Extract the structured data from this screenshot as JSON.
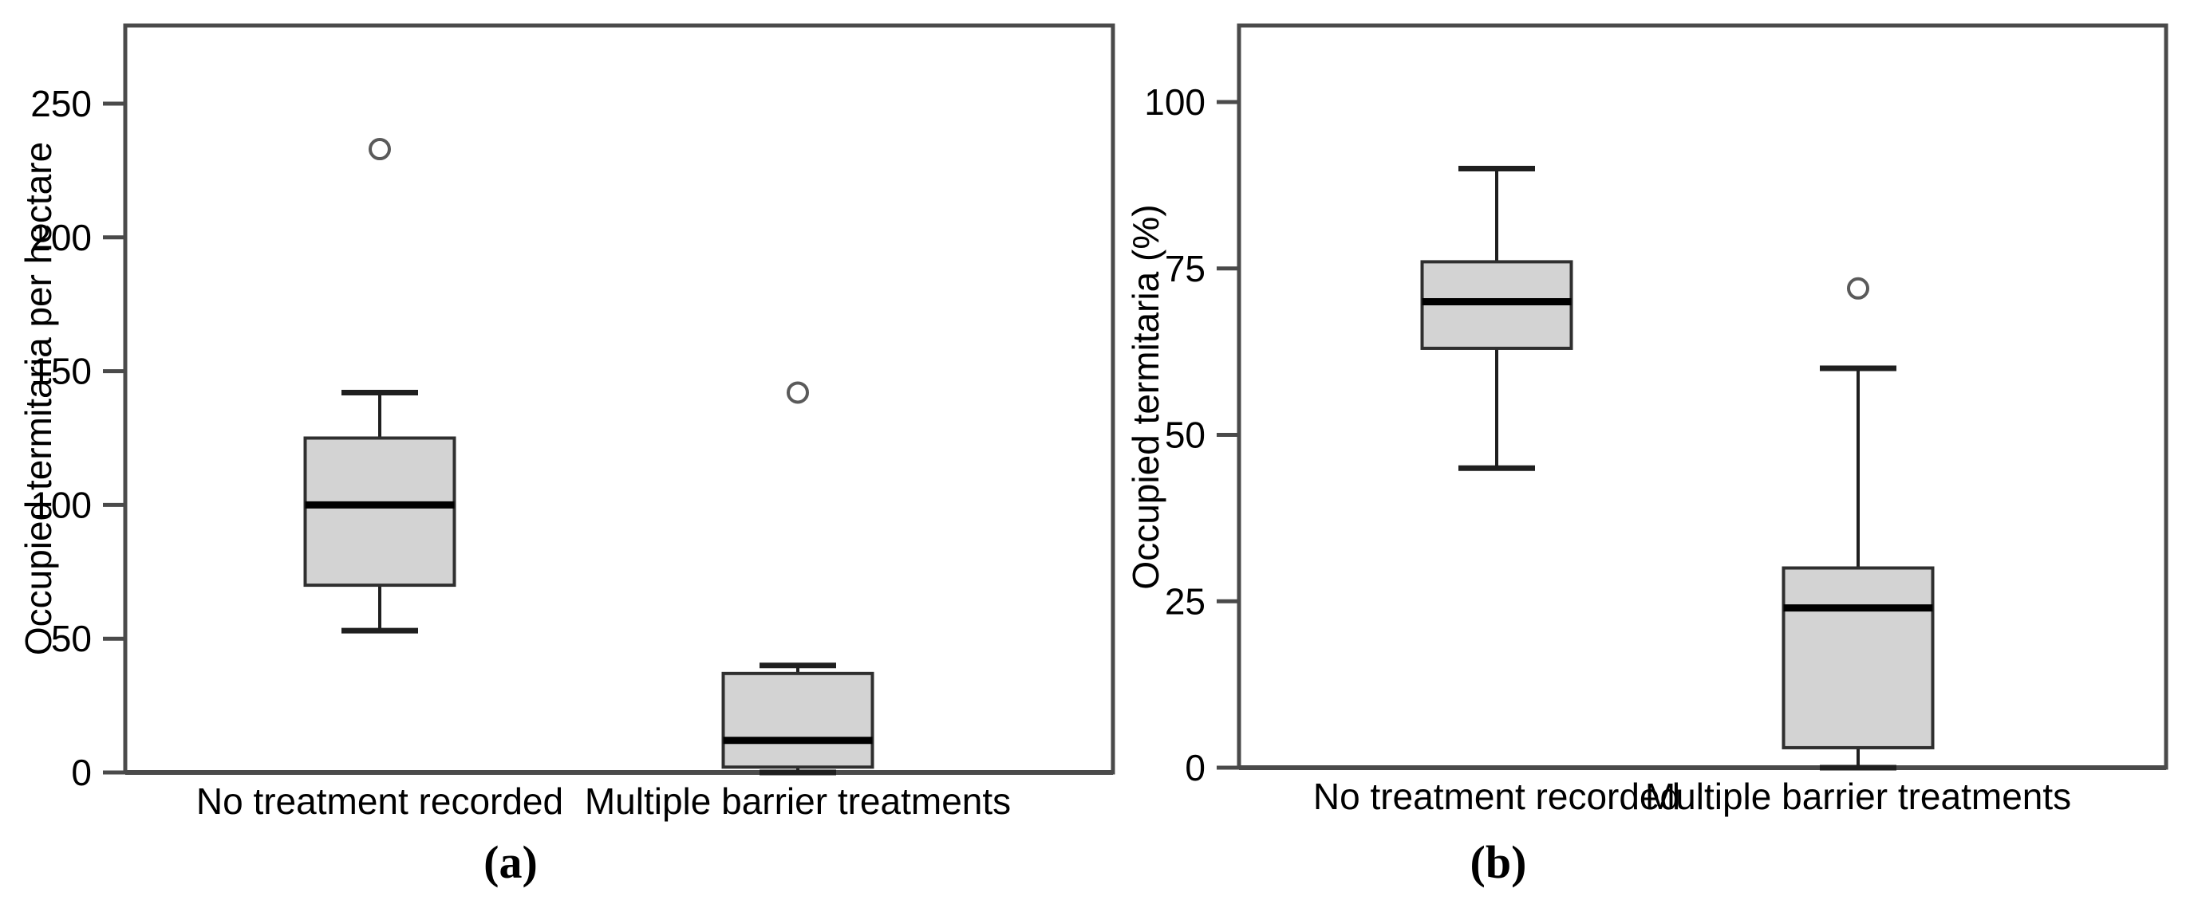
{
  "figure": {
    "description": "Two-panel boxplot figure comparing occupied termitaria between treatment groups",
    "colors": {
      "background": "#ffffff",
      "box_fill": "#d3d3d3",
      "box_stroke": "#2f2f2f",
      "median_line": "#000000",
      "whisker": "#1f1f1f",
      "axis": "#4a4a4a",
      "outlier_stroke": "#5a5a5a",
      "text": "#000000"
    },
    "captions": {
      "a": "(a)",
      "b": "(b)"
    }
  },
  "chart_data": [
    {
      "type": "boxplot",
      "panel": "a",
      "caption": "(a)",
      "title": "",
      "xlabel": "",
      "ylabel": "Occupied termitaria per hectare",
      "ylim": [
        0,
        280
      ],
      "yticks": [
        0,
        50,
        100,
        150,
        200,
        250
      ],
      "grid": false,
      "legend": "none",
      "categories": [
        "No treatment recorded",
        "Multiple barrier treatments"
      ],
      "boxes": [
        {
          "category": "No treatment recorded",
          "whisker_low": 53,
          "q1": 70,
          "median": 100,
          "q3": 125,
          "whisker_high": 142,
          "outliers": [
            233
          ]
        },
        {
          "category": "Multiple barrier treatments",
          "whisker_low": 0,
          "q1": 2,
          "median": 12,
          "q3": 37,
          "whisker_high": 40,
          "outliers": [
            142
          ]
        }
      ]
    },
    {
      "type": "boxplot",
      "panel": "b",
      "caption": "(b)",
      "title": "",
      "xlabel": "",
      "ylabel": "Occupied termitaria (%)",
      "ylim": [
        0,
        112
      ],
      "yticks": [
        0,
        25,
        50,
        75,
        100
      ],
      "grid": false,
      "legend": "none",
      "categories": [
        "No treatment recorded",
        "Multiple barrier treatments"
      ],
      "boxes": [
        {
          "category": "No treatment recorded",
          "whisker_low": 45,
          "q1": 63,
          "median": 70,
          "q3": 76,
          "whisker_high": 90,
          "outliers": []
        },
        {
          "category": "Multiple barrier treatments",
          "whisker_low": 0,
          "q1": 3,
          "median": 24,
          "q3": 30,
          "whisker_high": 60,
          "outliers": [
            72
          ]
        }
      ]
    }
  ]
}
